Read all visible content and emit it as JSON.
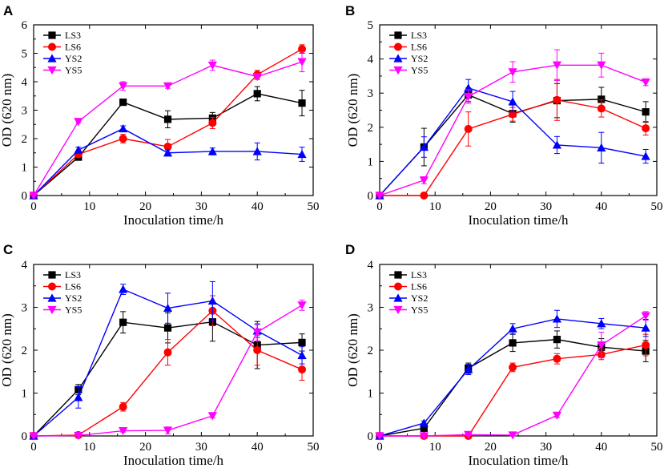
{
  "chart_data": [
    {
      "panel_label": "A",
      "type": "line",
      "xlabel": "Inoculation time/h",
      "ylabel": "OD (620 nm)",
      "xlim": [
        0,
        50
      ],
      "ylim": [
        0,
        6
      ],
      "xticks": [
        "0",
        "10",
        "20",
        "30",
        "40",
        "50"
      ],
      "yticks": [
        "0",
        "1",
        "2",
        "3",
        "4",
        "5",
        "6"
      ],
      "x": [
        0,
        8,
        16,
        24,
        32,
        40,
        48
      ],
      "legend_position": "top-left",
      "series": [
        {
          "name": "LS3",
          "values": [
            0,
            1.35,
            3.28,
            2.68,
            2.72,
            3.58,
            3.25
          ],
          "errors": [
            0,
            0.1,
            0.08,
            0.3,
            0.2,
            0.25,
            0.45
          ]
        },
        {
          "name": "LS6",
          "values": [
            0,
            1.45,
            2.0,
            1.72,
            2.55,
            4.25,
            5.15
          ],
          "errors": [
            0,
            0.1,
            0.15,
            0.25,
            0.2,
            0.15,
            0.15
          ]
        },
        {
          "name": "YS2",
          "values": [
            0,
            1.6,
            2.35,
            1.5,
            1.55,
            1.55,
            1.45
          ],
          "errors": [
            0,
            0.1,
            0.1,
            0.1,
            0.12,
            0.3,
            0.25
          ]
        },
        {
          "name": "YS5",
          "values": [
            0,
            2.6,
            3.85,
            3.85,
            4.58,
            4.18,
            4.7
          ],
          "errors": [
            0,
            0.05,
            0.15,
            0.08,
            0.18,
            0.1,
            0.35
          ]
        }
      ]
    },
    {
      "panel_label": "B",
      "type": "line",
      "xlabel": "Inoculation time/h",
      "ylabel": "OD (620 nm)",
      "xlim": [
        0,
        50
      ],
      "ylim": [
        0,
        5
      ],
      "xticks": [
        "0",
        "10",
        "20",
        "30",
        "40",
        "50"
      ],
      "yticks": [
        "0",
        "1",
        "2",
        "3",
        "4",
        "5"
      ],
      "x": [
        0,
        8,
        16,
        24,
        32,
        40,
        48
      ],
      "legend_position": "top-left",
      "series": [
        {
          "name": "LS3",
          "values": [
            0,
            1.42,
            2.95,
            2.4,
            2.78,
            2.82,
            2.45
          ],
          "errors": [
            0,
            0.55,
            0.2,
            0.25,
            0.5,
            0.35,
            0.3
          ]
        },
        {
          "name": "LS6",
          "values": [
            0,
            0,
            1.95,
            2.38,
            2.8,
            2.55,
            1.97
          ],
          "errors": [
            0,
            0.05,
            0.5,
            0.2,
            0.6,
            0.25,
            0.2
          ]
        },
        {
          "name": "YS2",
          "values": [
            0,
            1.42,
            3.15,
            2.75,
            1.48,
            1.4,
            1.15
          ],
          "errors": [
            0,
            0.3,
            0.25,
            0.3,
            0.25,
            0.45,
            0.2
          ]
        },
        {
          "name": "YS5",
          "values": [
            0,
            0.45,
            2.9,
            3.62,
            3.82,
            3.82,
            3.32
          ],
          "errors": [
            0,
            0.1,
            0.2,
            0.3,
            0.45,
            0.35,
            0.1
          ]
        }
      ]
    },
    {
      "panel_label": "C",
      "type": "line",
      "xlabel": "Inoculation time/h",
      "ylabel": "OD (620 nm)",
      "xlim": [
        0,
        50
      ],
      "ylim": [
        0,
        4
      ],
      "xticks": [
        "0",
        "10",
        "20",
        "30",
        "40",
        "50"
      ],
      "yticks": [
        "0",
        "1",
        "2",
        "3",
        "4"
      ],
      "x": [
        0,
        8,
        16,
        24,
        32,
        40,
        48
      ],
      "legend_position": "top-left",
      "series": [
        {
          "name": "LS3",
          "values": [
            0,
            1.08,
            2.65,
            2.52,
            2.66,
            2.12,
            2.18
          ],
          "errors": [
            0,
            0.12,
            0.25,
            0.35,
            0.45,
            0.55,
            0.2
          ]
        },
        {
          "name": "LS6",
          "values": [
            0,
            0.02,
            0.68,
            1.95,
            2.92,
            2.0,
            1.55
          ],
          "errors": [
            0,
            0.02,
            0.1,
            0.3,
            0.35,
            0.35,
            0.25
          ]
        },
        {
          "name": "YS2",
          "values": [
            0,
            0.9,
            3.42,
            2.98,
            3.15,
            2.45,
            1.88
          ],
          "errors": [
            0,
            0.25,
            0.12,
            0.35,
            0.45,
            0.15,
            0.2
          ]
        },
        {
          "name": "YS5",
          "values": [
            0,
            0.01,
            0.12,
            0.13,
            0.47,
            2.42,
            3.05
          ],
          "errors": [
            0,
            0.02,
            0.03,
            0.08,
            0.05,
            0.2,
            0.12
          ]
        }
      ]
    },
    {
      "panel_label": "D",
      "type": "line",
      "xlabel": "Inoculation time/h",
      "ylabel": "OD (620 nm)",
      "xlim": [
        0,
        50
      ],
      "ylim": [
        0,
        4
      ],
      "xticks": [
        "0",
        "10",
        "20",
        "30",
        "40",
        "50"
      ],
      "yticks": [
        "0",
        "1",
        "2",
        "3",
        "4"
      ],
      "x": [
        0,
        8,
        16,
        24,
        32,
        40,
        48
      ],
      "legend_position": "top-left",
      "series": [
        {
          "name": "LS3",
          "values": [
            0,
            0.18,
            1.58,
            2.17,
            2.25,
            2.07,
            1.98
          ],
          "errors": [
            0,
            0.05,
            0.12,
            0.2,
            0.2,
            0.2,
            0.25
          ]
        },
        {
          "name": "LS6",
          "values": [
            0,
            0,
            0,
            1.6,
            1.8,
            1.9,
            2.12
          ],
          "errors": [
            0,
            0.02,
            0.03,
            0.1,
            0.12,
            0.12,
            0.25
          ]
        },
        {
          "name": "YS2",
          "values": [
            0,
            0.3,
            1.55,
            2.5,
            2.73,
            2.62,
            2.52
          ],
          "errors": [
            0,
            0.05,
            0.12,
            0.12,
            0.2,
            0.12,
            0.2
          ]
        },
        {
          "name": "YS5",
          "values": [
            0,
            0,
            0.03,
            0.02,
            0.48,
            2.12,
            2.8
          ],
          "errors": [
            0,
            0.02,
            0.02,
            0.02,
            0.05,
            0.3,
            0.1
          ]
        }
      ]
    }
  ],
  "series_style": {
    "LS3": {
      "color": "#000000",
      "marker": "square"
    },
    "LS6": {
      "color": "#ff0000",
      "marker": "circle"
    },
    "YS2": {
      "color": "#0000ff",
      "marker": "triangle-up"
    },
    "YS5": {
      "color": "#ff00ff",
      "marker": "triangle-down"
    }
  }
}
